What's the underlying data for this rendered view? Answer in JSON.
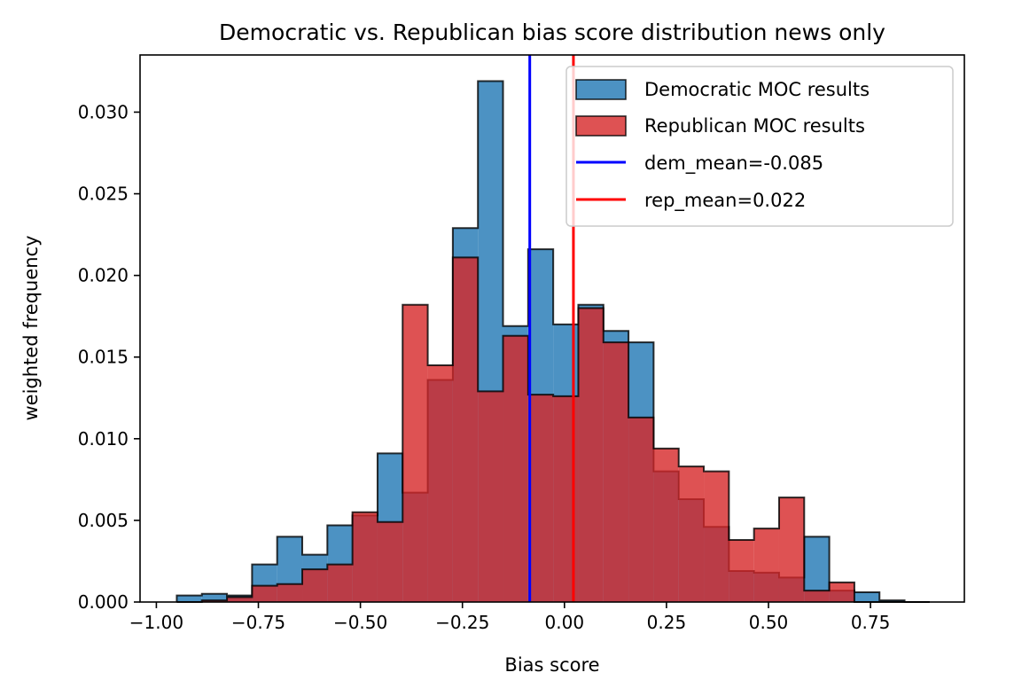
{
  "chart_data": {
    "type": "histogram",
    "title": "Democratic vs. Republican bias score distribution news only",
    "xlabel": "Bias score",
    "ylabel": "weighted frequency",
    "xlim": [
      -1.04,
      0.98
    ],
    "ylim": [
      0,
      0.0335
    ],
    "x_ticks": [
      -1.0,
      -0.75,
      -0.5,
      -0.25,
      0.0,
      0.25,
      0.5,
      0.75
    ],
    "x_tick_labels": [
      "−1.00",
      "−0.75",
      "−0.50",
      "−0.25",
      "0.00",
      "0.25",
      "0.50",
      "0.75"
    ],
    "y_ticks": [
      0.0,
      0.005,
      0.01,
      0.015,
      0.02,
      0.025,
      0.03
    ],
    "y_tick_labels": [
      "0.000",
      "0.005",
      "0.010",
      "0.015",
      "0.020",
      "0.025",
      "0.030"
    ],
    "bin_edges": [
      -0.95,
      -0.8885,
      -0.827,
      -0.7655,
      -0.704,
      -0.6425,
      -0.581,
      -0.5195,
      -0.458,
      -0.3965,
      -0.335,
      -0.2735,
      -0.212,
      -0.1505,
      -0.089,
      -0.0275,
      0.034,
      0.0955,
      0.157,
      0.2185,
      0.28,
      0.3415,
      0.403,
      0.4645,
      0.526,
      0.5875,
      0.649,
      0.7105,
      0.772,
      0.8335,
      0.895
    ],
    "series": [
      {
        "name": "Democratic MOC results",
        "color": "#1f77b4",
        "values": [
          0.0004,
          0.0005,
          0.0004,
          0.0023,
          0.004,
          0.0029,
          0.0047,
          0.0053,
          0.0091,
          0.0067,
          0.0136,
          0.0229,
          0.0319,
          0.0169,
          0.0216,
          0.017,
          0.0182,
          0.0166,
          0.0159,
          0.008,
          0.0063,
          0.0046,
          0.0019,
          0.0018,
          0.0015,
          0.004,
          0.0007,
          0.0006,
          0.0001,
          0.0
        ]
      },
      {
        "name": "Republican MOC results",
        "color": "#d62728",
        "values": [
          0.0,
          0.0001,
          0.0003,
          0.001,
          0.0011,
          0.002,
          0.0023,
          0.0055,
          0.0049,
          0.0182,
          0.0145,
          0.0211,
          0.0129,
          0.0163,
          0.0127,
          0.0126,
          0.018,
          0.0159,
          0.0113,
          0.0094,
          0.0083,
          0.008,
          0.0038,
          0.0045,
          0.0064,
          0.0007,
          0.0012,
          0.0,
          0.0,
          0.0
        ]
      }
    ],
    "mean_lines": [
      {
        "name": "dem_mean=-0.085",
        "value": -0.085,
        "color": "#0000ff"
      },
      {
        "name": "rep_mean=0.022",
        "value": 0.022,
        "color": "#ff0000"
      }
    ],
    "legend_position": "top-right",
    "grid": false
  }
}
